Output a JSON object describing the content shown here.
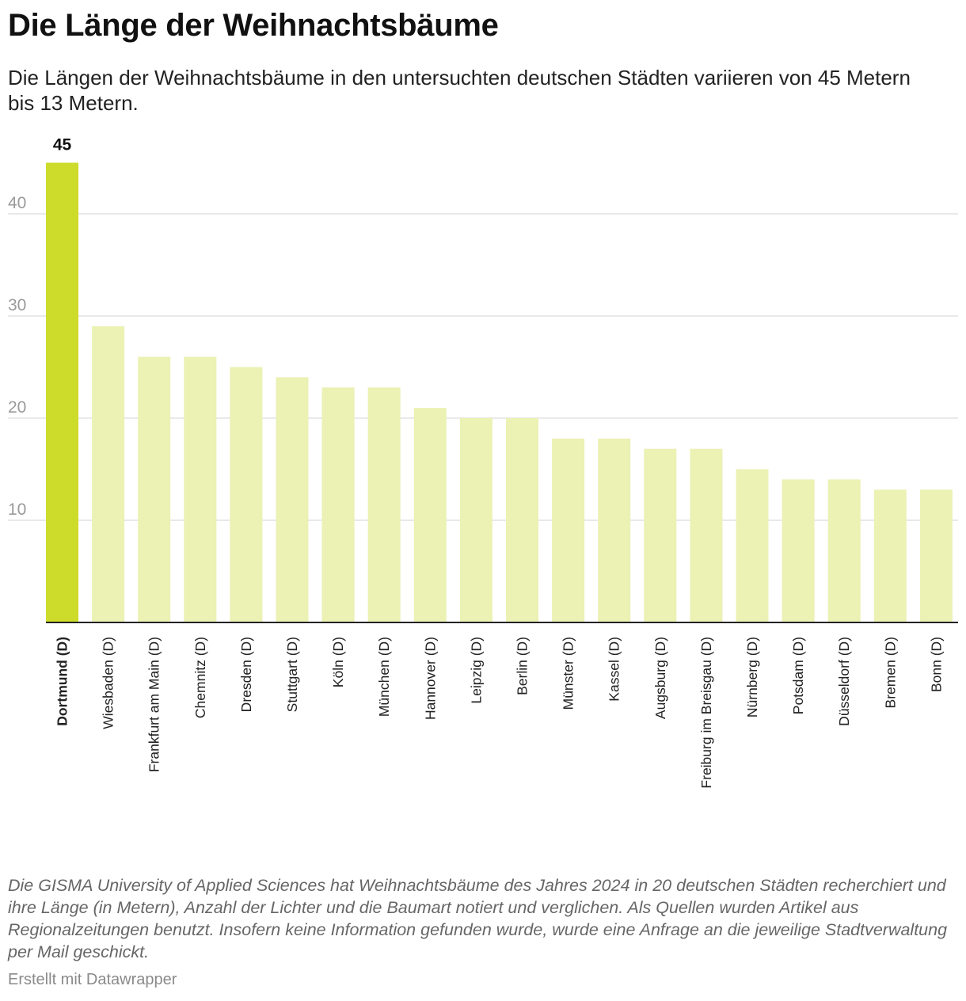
{
  "header": {
    "title": "Die Länge der Weihnachtsbäume",
    "subtitle": "Die Längen der Weihnachtsbäume in den untersuchten deutschen Städten variieren von 45 Metern bis 13 Metern."
  },
  "chart_data": {
    "type": "bar",
    "title": "Die Länge der Weihnachtsbäume",
    "subtitle": "Die Längen der Weihnachtsbäume in den untersuchten deutschen Städten variieren von 45 Metern bis 13 Metern.",
    "categories": [
      "Dortmund (D)",
      "Wiesbaden (D)",
      "Frankfurt am Main (D)",
      "Chemnitz (D)",
      "Dresden (D)",
      "Stuttgart (D)",
      "Köln (D)",
      "München (D)",
      "Hannover (D)",
      "Leipzig (D)",
      "Berlin (D)",
      "Münster (D)",
      "Kassel (D)",
      "Augsburg (D)",
      "Freiburg im Breisgau (D)",
      "Nürnberg (D)",
      "Potsdam (D)",
      "Düsseldorf (D)",
      "Bremen (D)",
      "Bonn (D)"
    ],
    "values": [
      45,
      29,
      26,
      26,
      25,
      24,
      23,
      23,
      21,
      20,
      20,
      18,
      18,
      17,
      17,
      15,
      14,
      14,
      13,
      13
    ],
    "y_ticks": [
      10,
      20,
      30,
      40
    ],
    "ylim": [
      0,
      45
    ],
    "grid": true,
    "highlight_index": 0,
    "highlight_label": "45",
    "colors": {
      "highlight": "#cddc2a",
      "bar": "#ecf1b4",
      "grid": "#e2e2e2",
      "axis": "#222222",
      "tick_text": "#9a9a9a"
    }
  },
  "footer": {
    "notes": "Die GISMA University of Applied Sciences hat Weihnachtsbäume des Jahres 2024 in 20 deutschen Städten recherchiert und ihre Länge (in Metern), Anzahl der Lichter und die Baumart notiert und verglichen. Als Quellen wurden Artikel aus Regionalzeitungen benutzt. Insofern keine Information gefunden wurde, wurde eine Anfrage an die jeweilige Stadtverwaltung per Mail geschickt.",
    "credit": "Erstellt mit Datawrapper"
  }
}
